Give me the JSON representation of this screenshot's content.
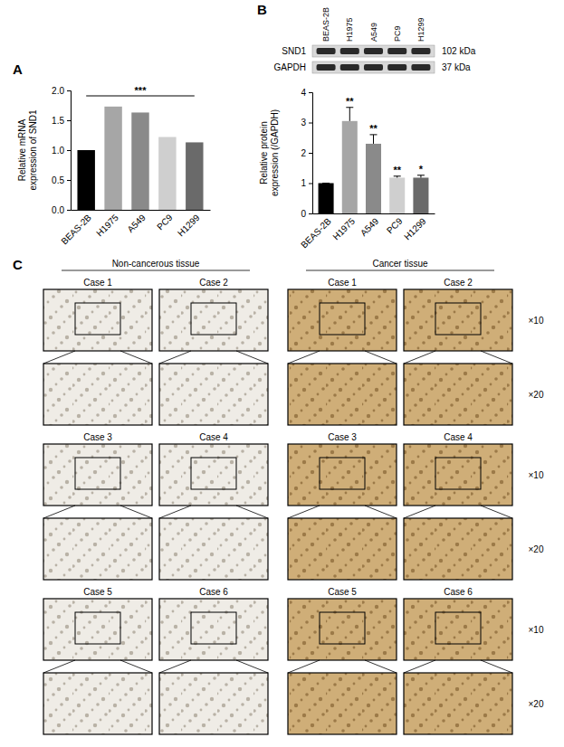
{
  "chart_data": [
    {
      "panel": "A",
      "type": "bar",
      "y_label": "Relative mRNA expression of SND1",
      "categories": [
        "BEAS-2B",
        "H1975",
        "A549",
        "PC9",
        "H1299"
      ],
      "values": [
        1.0,
        1.73,
        1.63,
        1.22,
        1.13
      ],
      "colors": [
        "#000000",
        "#a6a6a6",
        "#8a8a8a",
        "#cfcfcf",
        "#6a6a6a"
      ],
      "ylim": [
        0,
        2
      ],
      "yticks": [
        {
          "value": 0,
          "label": "0.0"
        },
        {
          "value": 0.5,
          "label": "0.5"
        },
        {
          "value": 1,
          "label": "1.0"
        },
        {
          "value": 1.5,
          "label": "1.5"
        },
        {
          "value": 2,
          "label": "2.0"
        }
      ],
      "significance": "***"
    },
    {
      "panel": "B",
      "type": "bar",
      "y_label": "Relative protein expression (/GAPDH)",
      "categories": [
        "BEAS-2B",
        "H1975",
        "A549",
        "PC9",
        "H1299"
      ],
      "values": [
        1.0,
        3.05,
        2.3,
        1.18,
        1.18
      ],
      "errors": [
        0,
        0.45,
        0.3,
        0.05,
        0.08
      ],
      "colors": [
        "#000000",
        "#a6a6a6",
        "#8a8a8a",
        "#cfcfcf",
        "#6a6a6a"
      ],
      "ylim": [
        0,
        4
      ],
      "yticks": [
        0,
        1,
        2,
        3,
        4
      ],
      "significance": [
        null,
        "**",
        "**",
        "**",
        "*"
      ],
      "blot": {
        "lanes": [
          "BEAS-2B",
          "H1975",
          "A549",
          "PC9",
          "H1299"
        ],
        "bands": [
          {
            "name": "SND1",
            "size": "102 kDa"
          },
          {
            "name": "GAPDH",
            "size": "37 kDa"
          }
        ]
      }
    }
  ],
  "panel_c": {
    "panel": "C",
    "groups": [
      "Non-cancerous tissue",
      "Cancer tissue"
    ],
    "cases": [
      "Case 1",
      "Case 2",
      "Case 3",
      "Case 4",
      "Case 5",
      "Case 6"
    ],
    "magnifications": [
      "×10",
      "×20"
    ]
  }
}
